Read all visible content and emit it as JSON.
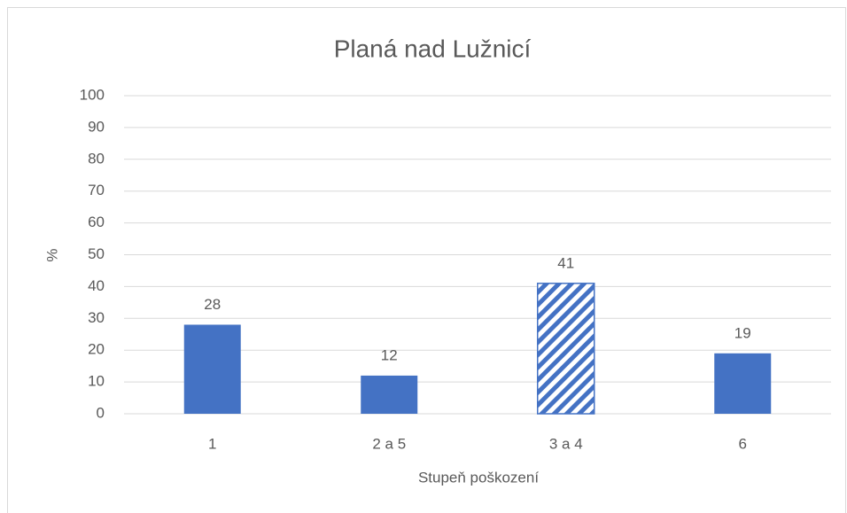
{
  "chart_data": {
    "type": "bar",
    "title": "Planá nad Lužnicí",
    "x_label": "Stupeň poškození",
    "y_label": "%",
    "categories": [
      "1",
      "2 a 5",
      "3 a 4",
      "6"
    ],
    "values": [
      28,
      12,
      41,
      19
    ],
    "color": "#4472c4",
    "bar_patterns": [
      "solid",
      "solid",
      "diagonal-stripes",
      "solid"
    ],
    "ylim": [
      0,
      100
    ],
    "yticks": [
      0,
      10,
      20,
      30,
      40,
      50,
      60,
      70,
      80,
      90,
      100
    ],
    "grid": true
  }
}
